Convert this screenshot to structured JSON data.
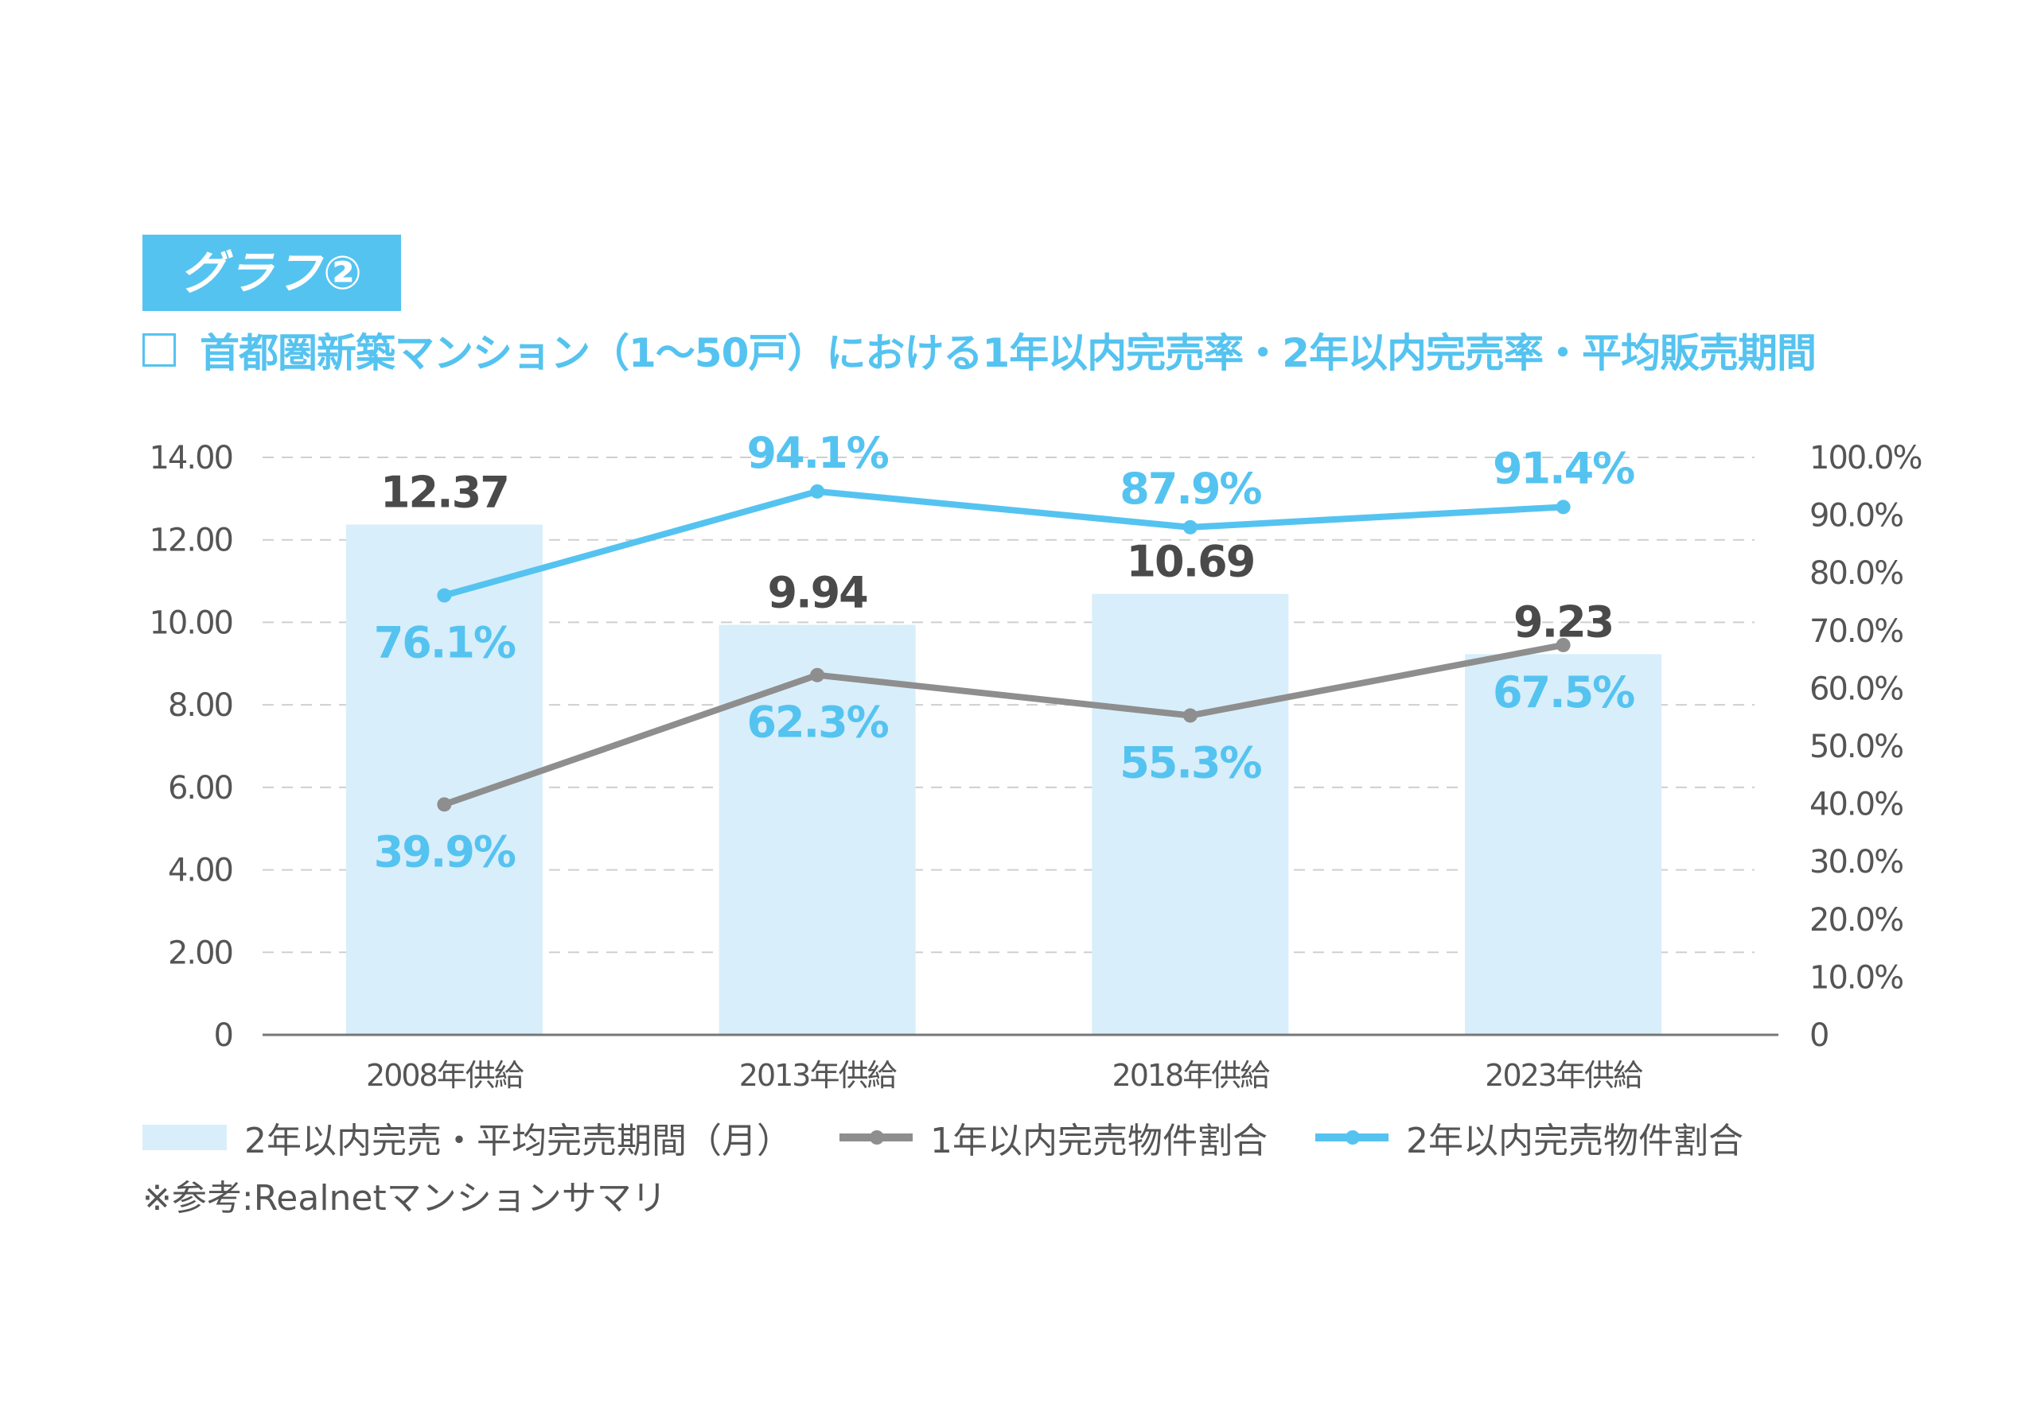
{
  "badge": {
    "label": "グラフ②"
  },
  "title": {
    "text": "首都圏新築マンション（1～50戸）における1年以内完売率・2年以内完売率・平均販売期間"
  },
  "legend": {
    "bar": "2年以内完売・平均完売期間（月）",
    "line1": "1年以内完売物件割合",
    "line2": "2年以内完売物件割合"
  },
  "note": "※参考:Realnetマンションサマリ",
  "colors": {
    "bar": "#d8eefb",
    "line1": "#8e8e8e",
    "line2": "#55c3f0",
    "accent": "#55c3f0",
    "text": "#555555"
  },
  "chart_data": {
    "type": "bar",
    "title": "首都圏新築マンション（1～50戸）における1年以内完売率・2年以内完売率・平均販売期間",
    "categories": [
      "2008年供給",
      "2013年供給",
      "2018年供給",
      "2023年供給"
    ],
    "series": [
      {
        "name": "2年以内完売・平均完売期間（月）",
        "type": "bar",
        "axis": "left",
        "values": [
          12.37,
          9.94,
          10.69,
          9.23
        ],
        "labels": [
          "12.37",
          "9.94",
          "10.69",
          "9.23"
        ]
      },
      {
        "name": "1年以内完売物件割合",
        "type": "line",
        "axis": "right",
        "values": [
          39.9,
          62.3,
          55.3,
          67.5
        ],
        "labels": [
          "39.9%",
          "62.3%",
          "55.3%",
          "67.5%"
        ]
      },
      {
        "name": "2年以内完売物件割合",
        "type": "line",
        "axis": "right",
        "values": [
          76.1,
          94.1,
          87.9,
          91.4
        ],
        "labels": [
          "76.1%",
          "94.1%",
          "87.9%",
          "91.4%"
        ]
      }
    ],
    "y_left": {
      "range": [
        0,
        14
      ],
      "ticks": [
        "0",
        "2.00",
        "4.00",
        "6.00",
        "8.00",
        "10.00",
        "12.00",
        "14.00"
      ],
      "tick_values": [
        0,
        2,
        4,
        6,
        8,
        10,
        12,
        14
      ]
    },
    "y_right": {
      "range": [
        0,
        100
      ],
      "ticks": [
        "0",
        "10.0%",
        "20.0%",
        "30.0%",
        "40.0%",
        "50.0%",
        "60.0%",
        "70.0%",
        "80.0%",
        "90.0%",
        "100.0%"
      ],
      "tick_values": [
        0,
        10,
        20,
        30,
        40,
        50,
        60,
        70,
        80,
        90,
        100
      ]
    },
    "grid": true,
    "legend_position": "bottom-left"
  }
}
